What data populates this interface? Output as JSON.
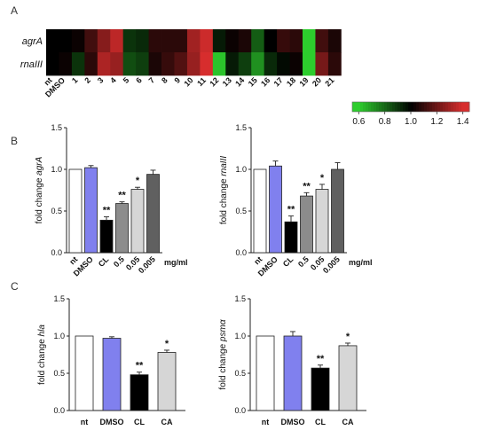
{
  "panels": {
    "A": "A",
    "B": "B",
    "C": "C"
  },
  "colors": {
    "nt": "#ffffff",
    "DMSO": "#8080ee",
    "CL": "#000000",
    "g1": "#8c8c8c",
    "g2": "#d6d6d6",
    "g3": "#606060",
    "CA": "#d6d6d6"
  },
  "chart_data": [
    {
      "type": "heatmap",
      "panel": "A",
      "rows": [
        "agrA",
        "rnaIII"
      ],
      "columns": [
        "nt",
        "DMSO",
        "1",
        "2",
        "3",
        "4",
        "5",
        "6",
        "7",
        "8",
        "9",
        "10",
        "11",
        "12",
        "13",
        "14",
        "15",
        "16",
        "17",
        "18",
        "19",
        "20",
        "21"
      ],
      "values": [
        [
          1.0,
          1.0,
          1.02,
          1.12,
          1.25,
          1.35,
          0.9,
          0.92,
          1.08,
          1.08,
          1.08,
          1.3,
          1.38,
          0.95,
          1.02,
          1.05,
          0.82,
          1.0,
          1.1,
          1.08,
          0.58,
          1.12,
          1.05
        ],
        [
          1.0,
          1.02,
          0.9,
          1.08,
          1.32,
          1.28,
          0.85,
          0.88,
          1.05,
          1.1,
          1.15,
          1.28,
          1.4,
          0.62,
          0.95,
          0.88,
          0.72,
          0.92,
          0.98,
          1.02,
          0.58,
          1.22,
          1.08
        ]
      ],
      "colorbar": {
        "ticks": [
          "0.6",
          "0.8",
          "1.0",
          "1.2",
          "1.4"
        ],
        "range": [
          0.55,
          1.45
        ]
      }
    },
    {
      "type": "bar",
      "panel": "B",
      "ylabel_prefix": "fold change ",
      "ylabel_gene": "agrA",
      "categories": [
        "nt",
        "DMSO",
        "CL",
        "0.5",
        "0.05",
        "0.005"
      ],
      "values": [
        1.0,
        1.02,
        0.39,
        0.59,
        0.76,
        0.94
      ],
      "errors": [
        0,
        0.025,
        0.04,
        0.02,
        0.025,
        0.05
      ],
      "significance": [
        "",
        "",
        "**",
        "**",
        "*",
        ""
      ],
      "ylim": [
        0,
        1.5
      ],
      "yticks": [
        "0.0",
        "0.5",
        "1.0",
        "1.5"
      ],
      "unit": "mg/ml"
    },
    {
      "type": "bar",
      "panel": "B",
      "ylabel_prefix": "fold change ",
      "ylabel_gene": "rnaIII",
      "categories": [
        "nt",
        "DMSO",
        "CL",
        "0.5",
        "0.05",
        "0.005"
      ],
      "values": [
        1.0,
        1.04,
        0.37,
        0.68,
        0.76,
        1.0
      ],
      "errors": [
        0,
        0.06,
        0.07,
        0.04,
        0.06,
        0.08
      ],
      "significance": [
        "",
        "",
        "**",
        "**",
        "*",
        ""
      ],
      "ylim": [
        0,
        1.5
      ],
      "yticks": [
        "0.0",
        "0.5",
        "1.0",
        "1.5"
      ],
      "unit": "mg/ml"
    },
    {
      "type": "bar",
      "panel": "C",
      "ylabel_prefix": "fold change ",
      "ylabel_gene": "hla",
      "categories": [
        "nt",
        "DMSO",
        "CL",
        "CA"
      ],
      "values": [
        1.0,
        0.97,
        0.48,
        0.78
      ],
      "errors": [
        0,
        0.02,
        0.035,
        0.03
      ],
      "significance": [
        "",
        "",
        "**",
        "*"
      ],
      "ylim": [
        0,
        1.5
      ],
      "yticks": [
        "0.0",
        "0.5",
        "1.0",
        "1.5"
      ]
    },
    {
      "type": "bar",
      "panel": "C",
      "ylabel_prefix": "fold change ",
      "ylabel_gene": "psmα",
      "categories": [
        "nt",
        "DMSO",
        "CL",
        "CA"
      ],
      "values": [
        1.0,
        1.0,
        0.57,
        0.87
      ],
      "errors": [
        0,
        0.06,
        0.04,
        0.035
      ],
      "significance": [
        "",
        "",
        "**",
        "*"
      ],
      "ylim": [
        0,
        1.5
      ],
      "yticks": [
        "0.0",
        "0.5",
        "1.0",
        "1.5"
      ]
    }
  ]
}
